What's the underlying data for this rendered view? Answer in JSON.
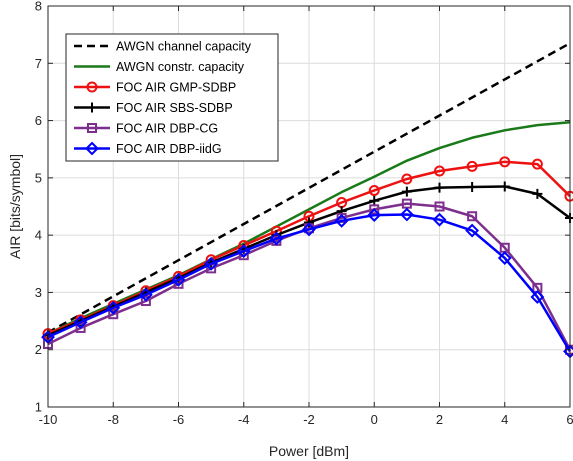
{
  "chart_data": {
    "type": "line",
    "xlabel": "Power [dBm]",
    "ylabel": "AIR [bits/symbol]",
    "xlim": [
      -10,
      6
    ],
    "ylim": [
      1,
      8
    ],
    "xticks": [
      -10,
      -8,
      -6,
      -4,
      -2,
      0,
      2,
      4,
      6
    ],
    "yticks": [
      1,
      2,
      3,
      4,
      5,
      6,
      7,
      8
    ],
    "grid": true,
    "legend_position": "top-left",
    "series": [
      {
        "name": "AWGN channel capacity",
        "color": "#000000",
        "style": "dashed",
        "marker": "none",
        "x": [
          -10,
          6
        ],
        "y": [
          2.3,
          7.35
        ]
      },
      {
        "name": "AWGN constr. capacity",
        "color": "#1a7a1a",
        "style": "solid",
        "marker": "none",
        "x": [
          -10,
          -9,
          -8,
          -7,
          -6,
          -5,
          -4,
          -3,
          -2,
          -1,
          0,
          1,
          2,
          3,
          4,
          5,
          6
        ],
        "y": [
          2.28,
          2.55,
          2.8,
          3.05,
          3.3,
          3.58,
          3.85,
          4.15,
          4.45,
          4.75,
          5.02,
          5.3,
          5.52,
          5.7,
          5.83,
          5.92,
          5.97
        ]
      },
      {
        "name": "FOC AIR GMP-SDBP",
        "color": "#ee1111",
        "style": "solid",
        "marker": "circle",
        "x": [
          -10,
          -9,
          -8,
          -7,
          -6,
          -5,
          -4,
          -3,
          -2,
          -1,
          0,
          1,
          2,
          3,
          4,
          5,
          6
        ],
        "y": [
          2.28,
          2.52,
          2.77,
          3.03,
          3.28,
          3.57,
          3.82,
          4.07,
          4.33,
          4.57,
          4.78,
          4.98,
          5.12,
          5.2,
          5.28,
          5.24,
          4.68
        ]
      },
      {
        "name": "FOC AIR SBS-SDBP",
        "color": "#000000",
        "style": "solid",
        "marker": "plus",
        "x": [
          -10,
          -9,
          -8,
          -7,
          -6,
          -5,
          -4,
          -3,
          -2,
          -1,
          0,
          1,
          2,
          3,
          4,
          5,
          6
        ],
        "y": [
          2.25,
          2.5,
          2.75,
          3.0,
          3.25,
          3.52,
          3.76,
          4.0,
          4.22,
          4.42,
          4.6,
          4.76,
          4.83,
          4.84,
          4.85,
          4.72,
          4.3
        ]
      },
      {
        "name": "FOC AIR DBP-CG",
        "color": "#7e2f8e",
        "style": "solid",
        "marker": "square",
        "x": [
          -10,
          -9,
          -8,
          -7,
          -6,
          -5,
          -4,
          -3,
          -2,
          -1,
          0,
          1,
          2,
          3,
          4,
          5,
          6
        ],
        "y": [
          2.1,
          2.38,
          2.62,
          2.85,
          3.15,
          3.42,
          3.65,
          3.9,
          4.12,
          4.3,
          4.45,
          4.55,
          4.5,
          4.33,
          3.78,
          3.08,
          2.0
        ]
      },
      {
        "name": "FOC AIR DBP-iidG",
        "color": "#0000ff",
        "style": "solid",
        "marker": "diamond",
        "x": [
          -10,
          -9,
          -8,
          -7,
          -6,
          -5,
          -4,
          -3,
          -2,
          -1,
          0,
          1,
          2,
          3,
          4,
          5,
          6
        ],
        "y": [
          2.22,
          2.48,
          2.73,
          2.96,
          3.22,
          3.5,
          3.72,
          3.94,
          4.1,
          4.25,
          4.35,
          4.36,
          4.27,
          4.08,
          3.6,
          2.92,
          1.97
        ]
      }
    ]
  }
}
